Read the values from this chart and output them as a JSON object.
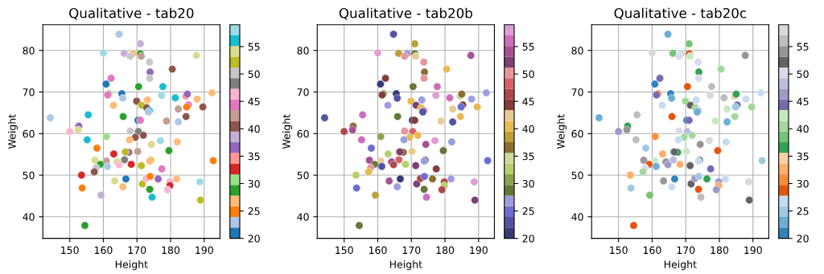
{
  "chart_data": [
    {
      "type": "scatter",
      "title": "Qualitative - tab20",
      "xlabel": "Height",
      "ylabel": "Weight",
      "x": [
        164.7,
        171.0,
        160.0,
        166.2,
        168.8,
        171.0,
        168.0,
        171.3,
        173.7,
        173.9,
        173.8,
        162.3,
        160.8,
        170.5,
        165.5,
        161.7,
        161.3,
        165.8,
        173.1,
        169.9,
        171.4,
        172.9,
        173.7,
        173.4,
        163.0,
        144.2,
        155.5,
        165.9,
        170.3,
        171.0,
        152.7,
        152.5,
        150.0,
        168.0,
        170.4,
        169.5,
        171.9,
        167.8,
        160.9,
        155.2,
        174.3,
        158.1,
        163.1,
        166.4,
        167.6,
        166.6,
        170.2,
        157.5,
        160.9,
        164.1,
        166.3,
        159.1,
        168.3,
        171.3,
        174.1,
        173.8,
        157.9,
        161.2,
        164.7,
        157.3,
        153.5,
        166.7,
        163.4,
        165.8,
        153.7,
        159.3,
        154.5,
        171.6,
        172.7,
        173.9,
        176.3,
        173.8,
        174.5,
        177.4,
        187.7,
        180.5,
        177.7,
        177.3,
        181.4,
        184.5,
        185.0,
        187.9,
        192.3,
        185.3,
        184.8,
        189.6,
        182.3,
        184.6,
        178.8,
        182.3,
        177.0,
        182.0,
        179.5,
        192.7,
        181.8,
        179.8,
        179.8,
        179.1,
        188.7,
        188.9
      ],
      "values": [
        83.9,
        81.6,
        79.4,
        79.3,
        79.3,
        79.2,
        78.6,
        78.6,
        77.2,
        74.8,
        73.3,
        73.3,
        71.9,
        71.3,
        69.6,
        69.6,
        69.3,
        68.5,
        68.1,
        67.8,
        66.8,
        66.2,
        65.5,
        65.2,
        66.8,
        63.8,
        64.5,
        64.1,
        63.2,
        63.2,
        61.8,
        60.9,
        60.5,
        60.6,
        60.5,
        59.1,
        59.6,
        58.5,
        59.3,
        58.5,
        57.4,
        56.5,
        55.1,
        55.6,
        55.5,
        55.6,
        55.7,
        53.6,
        53.4,
        53.2,
        53.7,
        52.6,
        52.6,
        52.3,
        53.6,
        53.4,
        51.8,
        52.1,
        52.5,
        50.8,
        50.0,
        49.1,
        48.6,
        47.2,
        46.9,
        45.2,
        37.9,
        47.9,
        49.2,
        49.7,
        49.1,
        46.6,
        44.7,
        51.5,
        78.8,
        75.5,
        71.3,
        69.2,
        68.6,
        69.0,
        69.5,
        68.3,
        69.8,
        66.9,
        66.4,
        66.4,
        65.9,
        64.1,
        63.0,
        62.8,
        58.3,
        58.0,
        55.9,
        53.5,
        49.1,
        48.4,
        47.5,
        46.5,
        48.4,
        44.0
      ],
      "cvalues": [
        23,
        39,
        59,
        39,
        27,
        29,
        51,
        43,
        51,
        37,
        51,
        45,
        21,
        29,
        21,
        31,
        45,
        23,
        27,
        41,
        53,
        41,
        57,
        23,
        27,
        23,
        57,
        29,
        21,
        45,
        37,
        55,
        47,
        51,
        49,
        41,
        41,
        27,
        31,
        57,
        55,
        25,
        33,
        39,
        37,
        53,
        43,
        55,
        43,
        55,
        49,
        29,
        33,
        53,
        53,
        27,
        51,
        23,
        47,
        41,
        33,
        21,
        55,
        27,
        25,
        39,
        29,
        53,
        47,
        25,
        37,
        29,
        57,
        45,
        55,
        41,
        57,
        59,
        57,
        35,
        37,
        27,
        27,
        45,
        25,
        41,
        43,
        41,
        43,
        23,
        59,
        27,
        29,
        25,
        27,
        47,
        33,
        47,
        59,
        53
      ],
      "clim": [
        20,
        59
      ],
      "cticks": [
        20,
        25,
        30,
        35,
        40,
        45,
        50,
        55
      ],
      "xlim": [
        142,
        194.7
      ],
      "ylim": [
        34.8,
        86.2
      ],
      "xticks": [
        150,
        160,
        170,
        180,
        190
      ],
      "yticks": [
        40,
        50,
        60,
        70,
        80
      ],
      "grid": true,
      "marker": "circle"
    },
    {
      "type": "scatter",
      "title": "Qualitative - tab20b",
      "xlabel": "Height",
      "ylabel": "Weight",
      "x": [
        164.7,
        171.0,
        160.0,
        166.2,
        168.8,
        171.0,
        168.0,
        171.3,
        173.7,
        173.9,
        173.8,
        162.3,
        160.8,
        170.5,
        165.5,
        161.7,
        161.3,
        165.8,
        173.1,
        169.9,
        171.4,
        172.9,
        173.7,
        173.4,
        163.0,
        144.2,
        155.5,
        165.9,
        170.3,
        171.0,
        152.7,
        152.5,
        150.0,
        168.0,
        170.4,
        169.5,
        171.9,
        167.8,
        160.9,
        155.2,
        174.3,
        158.1,
        163.1,
        166.4,
        167.6,
        166.6,
        170.2,
        157.5,
        160.9,
        164.1,
        166.3,
        159.1,
        168.3,
        171.3,
        174.1,
        173.8,
        157.9,
        161.2,
        164.7,
        157.3,
        153.5,
        166.7,
        163.4,
        165.8,
        153.7,
        159.3,
        154.5,
        171.6,
        172.7,
        173.9,
        176.3,
        173.8,
        174.5,
        177.4,
        187.7,
        180.5,
        177.7,
        177.3,
        181.4,
        184.5,
        185.0,
        187.9,
        192.3,
        185.3,
        184.8,
        189.6,
        182.3,
        184.6,
        178.8,
        182.3,
        177.0,
        182.0,
        179.5,
        192.7,
        181.8,
        179.8,
        179.8,
        179.1,
        188.7,
        188.9
      ],
      "values": [
        83.9,
        81.6,
        79.4,
        79.3,
        79.3,
        79.2,
        78.6,
        78.6,
        77.2,
        74.8,
        73.3,
        73.3,
        71.9,
        71.3,
        69.6,
        69.6,
        69.3,
        68.5,
        68.1,
        67.8,
        66.8,
        66.2,
        65.5,
        65.2,
        66.8,
        63.8,
        64.5,
        64.1,
        63.2,
        63.2,
        61.8,
        60.9,
        60.5,
        60.6,
        60.5,
        59.1,
        59.6,
        58.5,
        59.3,
        58.5,
        57.4,
        56.5,
        55.1,
        55.6,
        55.5,
        55.6,
        55.7,
        53.6,
        53.4,
        53.2,
        53.7,
        52.6,
        52.6,
        52.3,
        53.6,
        53.4,
        51.8,
        52.1,
        52.5,
        50.8,
        50.0,
        49.1,
        48.6,
        47.2,
        46.9,
        45.2,
        37.9,
        47.9,
        49.2,
        49.7,
        49.1,
        46.6,
        44.7,
        51.5,
        78.8,
        75.5,
        71.3,
        69.2,
        68.6,
        69.0,
        69.5,
        68.3,
        69.8,
        66.9,
        66.4,
        66.4,
        65.9,
        64.1,
        63.0,
        62.8,
        58.3,
        58.0,
        55.9,
        53.5,
        49.1,
        48.4,
        47.5,
        46.5,
        48.4,
        44.0
      ],
      "cvalues": [
        23,
        39,
        59,
        39,
        27,
        29,
        51,
        43,
        51,
        37,
        51,
        45,
        21,
        29,
        21,
        31,
        45,
        23,
        27,
        41,
        53,
        41,
        57,
        23,
        27,
        23,
        57,
        29,
        21,
        45,
        37,
        55,
        47,
        51,
        49,
        41,
        41,
        27,
        31,
        57,
        55,
        25,
        33,
        39,
        37,
        53,
        43,
        55,
        43,
        55,
        49,
        29,
        33,
        53,
        53,
        27,
        51,
        23,
        47,
        41,
        33,
        21,
        55,
        27,
        25,
        39,
        29,
        53,
        47,
        25,
        37,
        29,
        57,
        45,
        55,
        41,
        57,
        59,
        57,
        35,
        37,
        27,
        27,
        45,
        25,
        41,
        43,
        41,
        43,
        23,
        59,
        27,
        29,
        25,
        27,
        47,
        33,
        47,
        59,
        53
      ],
      "clim": [
        20,
        59
      ],
      "cticks": [
        20,
        25,
        30,
        35,
        40,
        45,
        50,
        55
      ],
      "xlim": [
        142,
        194.7
      ],
      "ylim": [
        34.8,
        86.2
      ],
      "xticks": [
        150,
        160,
        170,
        180,
        190
      ],
      "yticks": [
        40,
        50,
        60,
        70,
        80
      ],
      "grid": true,
      "marker": "circle"
    },
    {
      "type": "scatter",
      "title": "Qualitative - tab20c",
      "xlabel": "Height",
      "ylabel": "Weight",
      "x": [
        164.7,
        171.0,
        160.0,
        166.2,
        168.8,
        171.0,
        168.0,
        171.3,
        173.7,
        173.9,
        173.8,
        162.3,
        160.8,
        170.5,
        165.5,
        161.7,
        161.3,
        165.8,
        173.1,
        169.9,
        171.4,
        172.9,
        173.7,
        173.4,
        163.0,
        144.2,
        155.5,
        165.9,
        170.3,
        171.0,
        152.7,
        152.5,
        150.0,
        168.0,
        170.4,
        169.5,
        171.9,
        167.8,
        160.9,
        155.2,
        174.3,
        158.1,
        163.1,
        166.4,
        167.6,
        166.6,
        170.2,
        157.5,
        160.9,
        164.1,
        166.3,
        159.1,
        168.3,
        171.3,
        174.1,
        173.8,
        157.9,
        161.2,
        164.7,
        157.3,
        153.5,
        166.7,
        163.4,
        165.8,
        153.7,
        159.3,
        154.5,
        171.6,
        172.7,
        173.9,
        176.3,
        173.8,
        174.5,
        177.4,
        187.7,
        180.5,
        177.7,
        177.3,
        181.4,
        184.5,
        185.0,
        187.9,
        192.3,
        185.3,
        184.8,
        189.6,
        182.3,
        184.6,
        178.8,
        182.3,
        177.0,
        182.0,
        179.5,
        192.7,
        181.8,
        179.8,
        179.8,
        179.1,
        188.7,
        188.9
      ],
      "values": [
        83.9,
        81.6,
        79.4,
        79.3,
        79.3,
        79.2,
        78.6,
        78.6,
        77.2,
        74.8,
        73.3,
        73.3,
        71.9,
        71.3,
        69.6,
        69.6,
        69.3,
        68.5,
        68.1,
        67.8,
        66.8,
        66.2,
        65.5,
        65.2,
        66.8,
        63.8,
        64.5,
        64.1,
        63.2,
        63.2,
        61.8,
        60.9,
        60.5,
        60.6,
        60.5,
        59.1,
        59.6,
        58.5,
        59.3,
        58.5,
        57.4,
        56.5,
        55.1,
        55.6,
        55.5,
        55.6,
        55.7,
        53.6,
        53.4,
        53.2,
        53.7,
        52.6,
        52.6,
        52.3,
        53.6,
        53.4,
        51.8,
        52.1,
        52.5,
        50.8,
        50.0,
        49.1,
        48.6,
        47.2,
        46.9,
        45.2,
        37.9,
        47.9,
        49.2,
        49.7,
        49.1,
        46.6,
        44.7,
        51.5,
        78.8,
        75.5,
        71.3,
        69.2,
        68.6,
        69.0,
        69.5,
        68.3,
        69.8,
        66.9,
        66.4,
        66.4,
        65.9,
        64.1,
        63.0,
        62.8,
        58.3,
        58.0,
        55.9,
        53.5,
        49.1,
        48.4,
        47.5,
        46.5,
        48.4,
        44.0
      ],
      "cvalues": [
        23,
        39,
        59,
        39,
        27,
        29,
        51,
        43,
        51,
        37,
        51,
        45,
        21,
        29,
        21,
        31,
        45,
        23,
        27,
        41,
        53,
        41,
        57,
        23,
        27,
        23,
        57,
        29,
        21,
        45,
        37,
        55,
        47,
        51,
        49,
        41,
        41,
        27,
        31,
        57,
        55,
        25,
        33,
        39,
        37,
        53,
        43,
        55,
        43,
        55,
        49,
        29,
        33,
        53,
        53,
        27,
        51,
        23,
        47,
        41,
        33,
        21,
        55,
        27,
        25,
        39,
        29,
        53,
        47,
        25,
        37,
        29,
        57,
        45,
        55,
        41,
        57,
        59,
        57,
        35,
        37,
        27,
        27,
        45,
        25,
        41,
        43,
        41,
        43,
        23,
        59,
        27,
        29,
        25,
        27,
        47,
        33,
        47,
        59,
        53
      ],
      "clim": [
        20,
        59
      ],
      "cticks": [
        20,
        25,
        30,
        35,
        40,
        45,
        50,
        55
      ],
      "xlim": [
        142,
        194.7
      ],
      "ylim": [
        34.8,
        86.2
      ],
      "xticks": [
        150,
        160,
        170,
        180,
        190
      ],
      "yticks": [
        40,
        50,
        60,
        70,
        80
      ],
      "grid": true,
      "marker": "circle"
    }
  ]
}
